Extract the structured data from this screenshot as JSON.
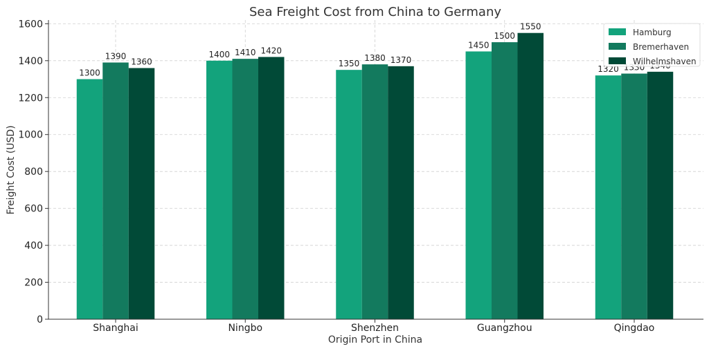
{
  "chart_data": {
    "type": "bar",
    "title": "Sea Freight Cost from China to Germany",
    "xlabel": "Origin Port in China",
    "ylabel": "Freight Cost (USD)",
    "categories": [
      "Shanghai",
      "Ningbo",
      "Shenzhen",
      "Guangzhou",
      "Qingdao"
    ],
    "series": [
      {
        "name": "Hamburg",
        "values": [
          1300,
          1400,
          1350,
          1450,
          1320
        ],
        "color": "#13a37c"
      },
      {
        "name": "Bremerhaven",
        "values": [
          1390,
          1410,
          1380,
          1500,
          1330
        ],
        "color": "#137a5e"
      },
      {
        "name": "Wilhelmshaven",
        "values": [
          1360,
          1420,
          1370,
          1550,
          1340
        ],
        "color": "#014a37"
      }
    ],
    "ylim": [
      0,
      1620
    ],
    "yticks": [
      0,
      200,
      400,
      600,
      800,
      1000,
      1200,
      1400,
      1600
    ],
    "grid": true,
    "legend_position": "top-right"
  }
}
